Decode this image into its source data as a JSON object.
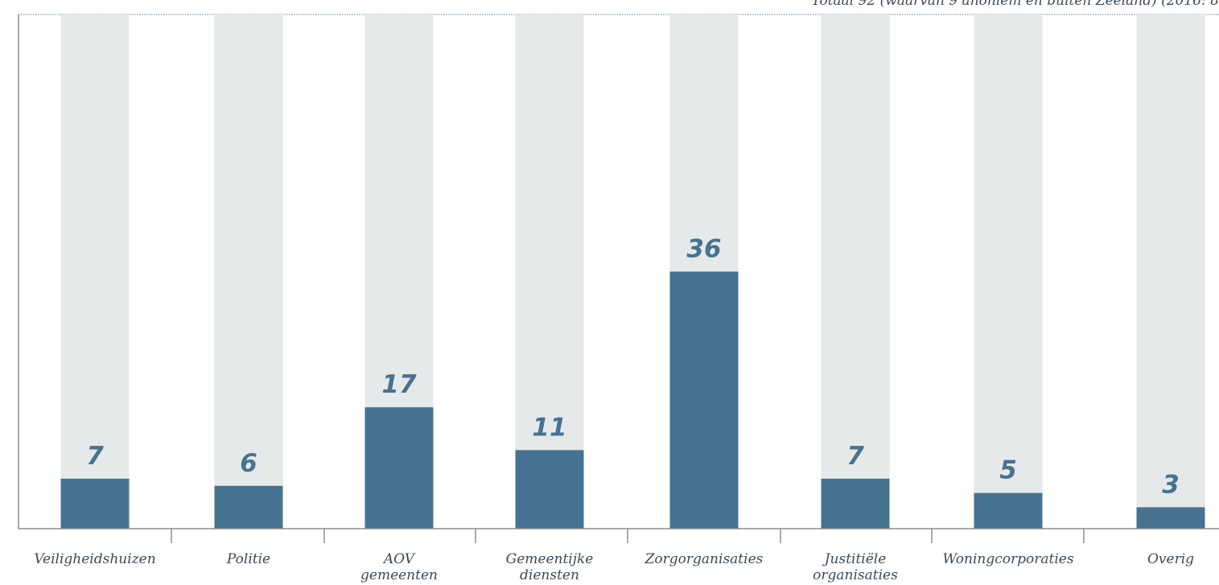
{
  "chart_data": {
    "type": "bar",
    "subtitle": "Totaal 92 (waarvan 9 anoniem en buiten Zeeland) (2016: 8",
    "categories": [
      [
        "Veiligheidshuizen"
      ],
      [
        "Politie"
      ],
      [
        "AOV",
        "gemeenten"
      ],
      [
        "Gemeentijke",
        "diensten"
      ],
      [
        "Zorgorganisaties"
      ],
      [
        "Justitiële",
        "organisaties"
      ],
      [
        "Woningcorporaties"
      ],
      [
        "Overig"
      ]
    ],
    "values": [
      7,
      6,
      17,
      11,
      36,
      7,
      5,
      3
    ],
    "ylim": [
      0,
      72
    ],
    "colors": {
      "bar": "#467391",
      "background_bar": "#e6e9ea",
      "value_label": "#467391",
      "axis": "#8a8f93"
    }
  }
}
